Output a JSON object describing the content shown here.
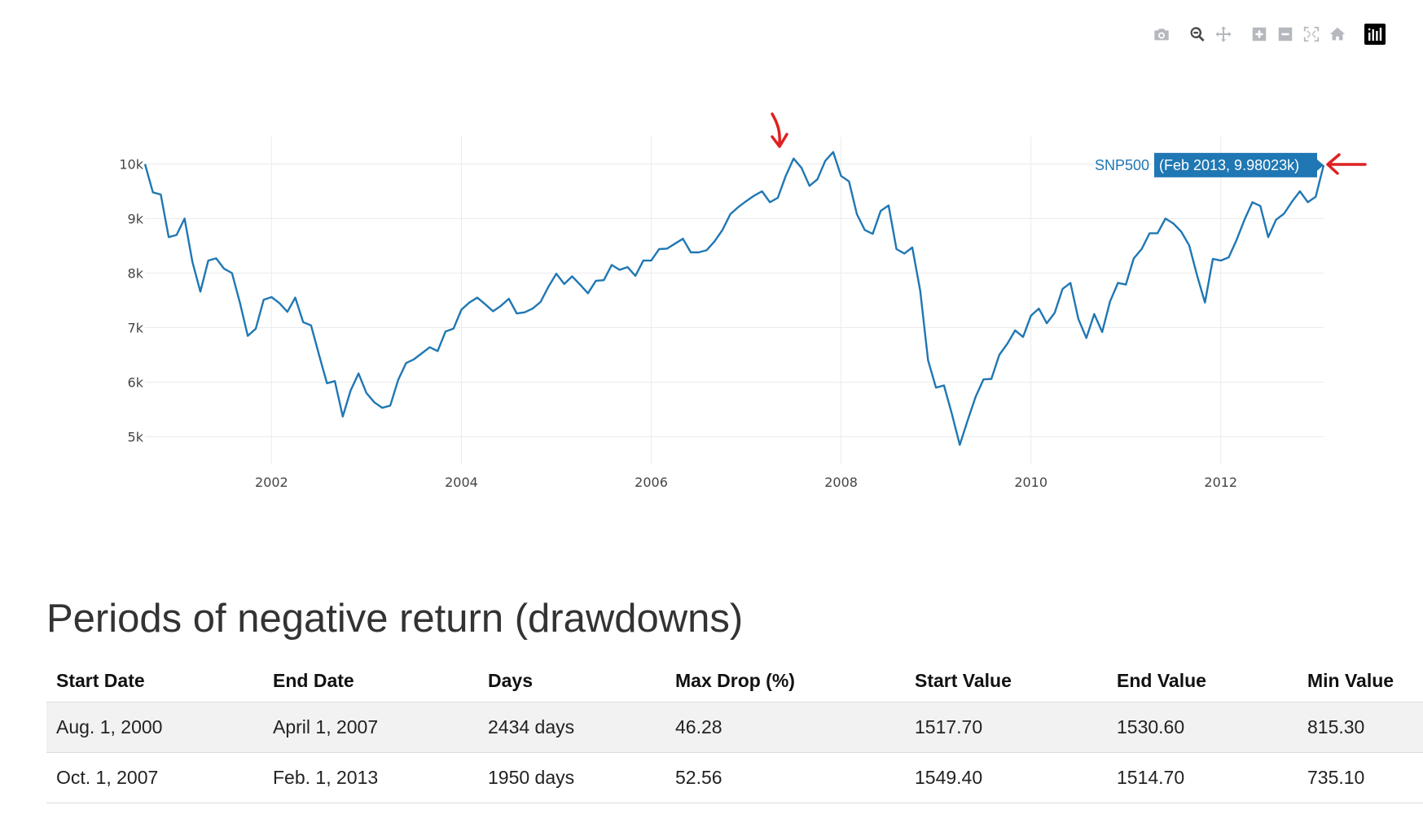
{
  "modebar": {
    "buttons": [
      {
        "name": "camera-icon",
        "label": "Download plot as a png"
      },
      {
        "name": "zoom-icon",
        "label": "Zoom",
        "active": true
      },
      {
        "name": "pan-icon",
        "label": "Pan"
      },
      {
        "name": "zoom-in-icon",
        "label": "Zoom in"
      },
      {
        "name": "zoom-out-icon",
        "label": "Zoom out"
      },
      {
        "name": "autoscale-icon",
        "label": "Autoscale"
      },
      {
        "name": "reset-axes-icon",
        "label": "Reset axes"
      },
      {
        "name": "plotly-logo-icon",
        "label": "Produced with Plotly"
      }
    ]
  },
  "chart_data": {
    "type": "line",
    "title": "",
    "xlabel": "",
    "ylabel": "",
    "x_ticks": [
      "2002",
      "2004",
      "2006",
      "2008",
      "2010",
      "2012"
    ],
    "y_ticks": [
      "5k",
      "6k",
      "7k",
      "8k",
      "9k",
      "10k"
    ],
    "y_tick_values": [
      5000,
      6000,
      7000,
      8000,
      9000,
      10000
    ],
    "xlim": [
      "2000-09-01",
      "2013-02-01"
    ],
    "ylim": [
      4500,
      10500
    ],
    "grid": true,
    "line_color": "#1f77b4",
    "annotation_color": "#e02020",
    "annotations": [
      "arrow-down at 2007 peak",
      "arrow-left at Feb 2013 hover label"
    ],
    "hover": {
      "series": "SNP500",
      "text": "(Feb 2013, 9.98023k)",
      "x": "2013-02-01",
      "y": 9980.23
    },
    "series": [
      {
        "name": "SNP500",
        "points": [
          [
            "2000-09-01",
            10000
          ],
          [
            "2000-10-01",
            9480
          ],
          [
            "2000-11-01",
            9440
          ],
          [
            "2000-12-01",
            8660
          ],
          [
            "2001-01-01",
            8700
          ],
          [
            "2001-02-01",
            9000
          ],
          [
            "2001-03-01",
            8200
          ],
          [
            "2001-04-01",
            7660
          ],
          [
            "2001-05-01",
            8230
          ],
          [
            "2001-06-01",
            8270
          ],
          [
            "2001-07-01",
            8080
          ],
          [
            "2001-08-01",
            8000
          ],
          [
            "2001-09-01",
            7460
          ],
          [
            "2001-10-01",
            6850
          ],
          [
            "2001-11-01",
            6980
          ],
          [
            "2001-12-01",
            7510
          ],
          [
            "2002-01-01",
            7560
          ],
          [
            "2002-02-01",
            7450
          ],
          [
            "2002-03-01",
            7290
          ],
          [
            "2002-04-01",
            7550
          ],
          [
            "2002-05-01",
            7100
          ],
          [
            "2002-06-01",
            7040
          ],
          [
            "2002-07-01",
            6500
          ],
          [
            "2002-08-01",
            5980
          ],
          [
            "2002-09-01",
            6020
          ],
          [
            "2002-10-01",
            5370
          ],
          [
            "2002-11-01",
            5850
          ],
          [
            "2002-12-01",
            6160
          ],
          [
            "2003-01-01",
            5800
          ],
          [
            "2003-02-01",
            5630
          ],
          [
            "2003-03-01",
            5530
          ],
          [
            "2003-04-01",
            5570
          ],
          [
            "2003-05-01",
            6040
          ],
          [
            "2003-06-01",
            6350
          ],
          [
            "2003-07-01",
            6420
          ],
          [
            "2003-08-01",
            6530
          ],
          [
            "2003-09-01",
            6640
          ],
          [
            "2003-10-01",
            6570
          ],
          [
            "2003-11-01",
            6930
          ],
          [
            "2003-12-01",
            6980
          ],
          [
            "2004-01-01",
            7330
          ],
          [
            "2004-02-01",
            7460
          ],
          [
            "2004-03-01",
            7550
          ],
          [
            "2004-04-01",
            7430
          ],
          [
            "2004-05-01",
            7300
          ],
          [
            "2004-06-01",
            7400
          ],
          [
            "2004-07-01",
            7530
          ],
          [
            "2004-08-01",
            7260
          ],
          [
            "2004-09-01",
            7280
          ],
          [
            "2004-10-01",
            7350
          ],
          [
            "2004-11-01",
            7470
          ],
          [
            "2004-12-01",
            7750
          ],
          [
            "2005-01-01",
            7990
          ],
          [
            "2005-02-01",
            7800
          ],
          [
            "2005-03-01",
            7940
          ],
          [
            "2005-04-01",
            7790
          ],
          [
            "2005-05-01",
            7630
          ],
          [
            "2005-06-01",
            7860
          ],
          [
            "2005-07-01",
            7870
          ],
          [
            "2005-08-01",
            8150
          ],
          [
            "2005-09-01",
            8060
          ],
          [
            "2005-10-01",
            8110
          ],
          [
            "2005-11-01",
            7950
          ],
          [
            "2005-12-01",
            8230
          ],
          [
            "2006-01-01",
            8230
          ],
          [
            "2006-02-01",
            8440
          ],
          [
            "2006-03-01",
            8450
          ],
          [
            "2006-04-01",
            8540
          ],
          [
            "2006-05-01",
            8630
          ],
          [
            "2006-06-01",
            8380
          ],
          [
            "2006-07-01",
            8380
          ],
          [
            "2006-08-01",
            8420
          ],
          [
            "2006-09-01",
            8580
          ],
          [
            "2006-10-01",
            8790
          ],
          [
            "2006-11-01",
            9080
          ],
          [
            "2006-12-01",
            9210
          ],
          [
            "2007-01-01",
            9320
          ],
          [
            "2007-02-01",
            9420
          ],
          [
            "2007-03-01",
            9500
          ],
          [
            "2007-04-01",
            9300
          ],
          [
            "2007-05-01",
            9380
          ],
          [
            "2007-06-01",
            9780
          ],
          [
            "2007-07-01",
            10100
          ],
          [
            "2007-08-01",
            9930
          ],
          [
            "2007-09-01",
            9600
          ],
          [
            "2007-10-01",
            9720
          ],
          [
            "2007-11-01",
            10060
          ],
          [
            "2007-12-01",
            10220
          ],
          [
            "2008-01-01",
            9780
          ],
          [
            "2008-02-01",
            9680
          ],
          [
            "2008-03-01",
            9080
          ],
          [
            "2008-04-01",
            8790
          ],
          [
            "2008-05-01",
            8720
          ],
          [
            "2008-06-01",
            9140
          ],
          [
            "2008-07-01",
            9240
          ],
          [
            "2008-08-01",
            8440
          ],
          [
            "2008-09-01",
            8360
          ],
          [
            "2008-10-01",
            8470
          ],
          [
            "2008-11-01",
            7680
          ],
          [
            "2008-12-01",
            6400
          ],
          [
            "2009-01-01",
            5900
          ],
          [
            "2009-02-01",
            5940
          ],
          [
            "2009-03-01",
            5420
          ],
          [
            "2009-04-01",
            4850
          ],
          [
            "2009-05-01",
            5300
          ],
          [
            "2009-06-01",
            5730
          ],
          [
            "2009-07-01",
            6050
          ],
          [
            "2009-08-01",
            6060
          ],
          [
            "2009-09-01",
            6500
          ],
          [
            "2009-10-01",
            6700
          ],
          [
            "2009-11-01",
            6950
          ],
          [
            "2009-12-01",
            6830
          ],
          [
            "2010-01-01",
            7220
          ],
          [
            "2010-02-01",
            7350
          ],
          [
            "2010-03-01",
            7080
          ],
          [
            "2010-04-01",
            7270
          ],
          [
            "2010-05-01",
            7710
          ],
          [
            "2010-06-01",
            7820
          ],
          [
            "2010-07-01",
            7160
          ],
          [
            "2010-08-01",
            6810
          ],
          [
            "2010-09-01",
            7250
          ],
          [
            "2010-10-01",
            6920
          ],
          [
            "2010-11-01",
            7480
          ],
          [
            "2010-12-01",
            7820
          ],
          [
            "2011-01-01",
            7790
          ],
          [
            "2011-02-01",
            8270
          ],
          [
            "2011-03-01",
            8440
          ],
          [
            "2011-04-01",
            8730
          ],
          [
            "2011-05-01",
            8730
          ],
          [
            "2011-06-01",
            9000
          ],
          [
            "2011-07-01",
            8910
          ],
          [
            "2011-08-01",
            8760
          ],
          [
            "2011-09-01",
            8510
          ],
          [
            "2011-10-01",
            7960
          ],
          [
            "2011-11-01",
            7460
          ],
          [
            "2011-12-01",
            8260
          ],
          [
            "2012-01-01",
            8230
          ],
          [
            "2012-02-01",
            8290
          ],
          [
            "2012-03-01",
            8610
          ],
          [
            "2012-04-01",
            8980
          ],
          [
            "2012-05-01",
            9300
          ],
          [
            "2012-06-01",
            9230
          ],
          [
            "2012-07-01",
            8660
          ],
          [
            "2012-08-01",
            8980
          ],
          [
            "2012-09-01",
            9090
          ],
          [
            "2012-10-01",
            9310
          ],
          [
            "2012-11-01",
            9500
          ],
          [
            "2012-12-01",
            9300
          ],
          [
            "2013-01-01",
            9400
          ],
          [
            "2013-02-01",
            9980
          ]
        ]
      }
    ]
  },
  "section": {
    "title": "Periods of negative return (drawdowns)"
  },
  "table": {
    "headers": [
      "Start Date",
      "End Date",
      "Days",
      "Max Drop (%)",
      "Start Value",
      "End Value",
      "Min Value"
    ],
    "rows": [
      [
        "Aug. 1, 2000",
        "April 1, 2007",
        "2434 days",
        "46.28",
        "1517.70",
        "1530.60",
        "815.30"
      ],
      [
        "Oct. 1, 2007",
        "Feb. 1, 2013",
        "1950 days",
        "52.56",
        "1549.40",
        "1514.70",
        "735.10"
      ]
    ]
  }
}
